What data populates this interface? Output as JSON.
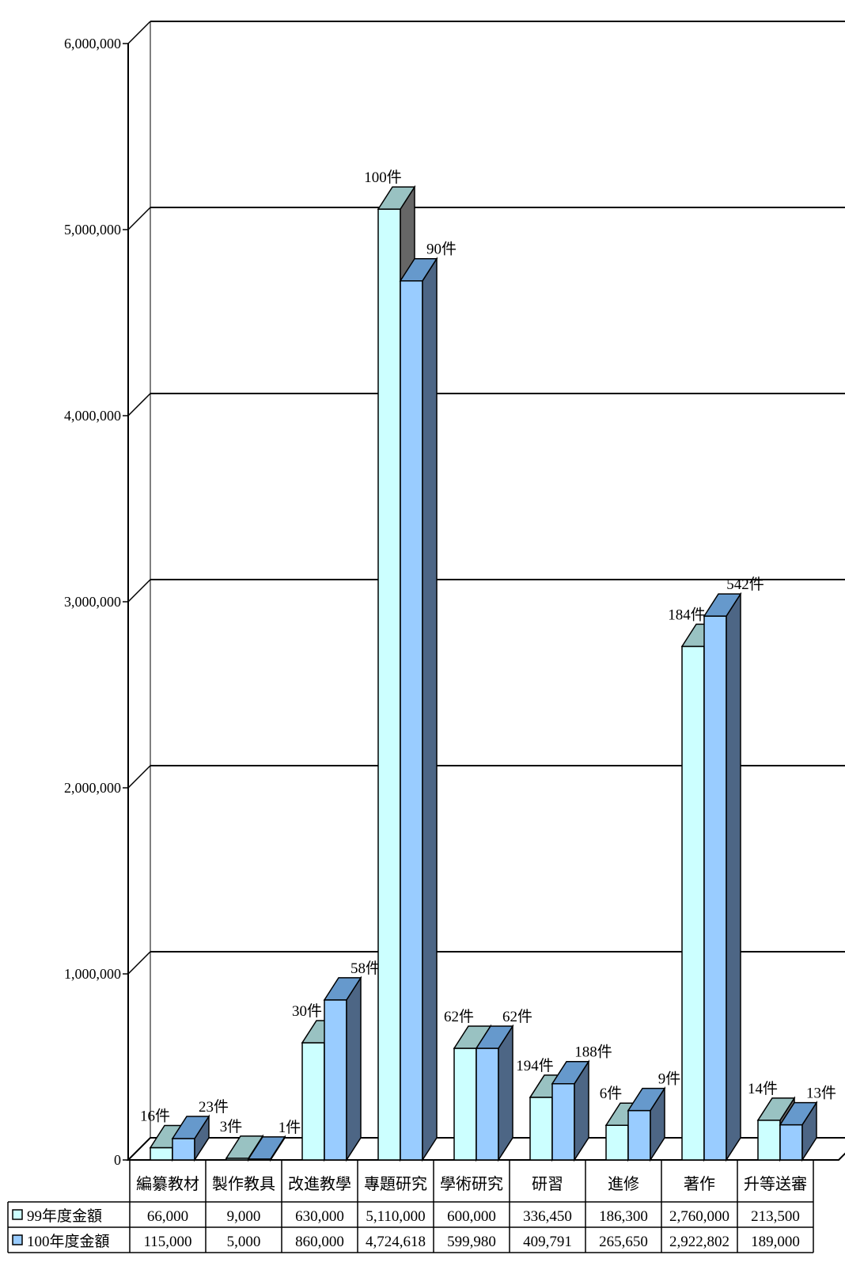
{
  "chart_data": {
    "type": "bar",
    "title": "",
    "xlabel": "",
    "ylabel": "",
    "ylim": [
      0,
      6000000
    ],
    "yticks": [
      0,
      1000000,
      2000000,
      3000000,
      4000000,
      5000000,
      6000000
    ],
    "ytick_labels": [
      "0",
      "1,000,000",
      "2,000,000",
      "3,000,000",
      "4,000,000",
      "5,000,000",
      "6,000,000"
    ],
    "grid": true,
    "style": "3d-clustered-column with data table",
    "categories": [
      "編纂教材",
      "製作教具",
      "改進教學",
      "專題研究",
      "學術研究",
      "研習",
      "進修",
      "著作",
      "升等送審"
    ],
    "series": [
      {
        "name": "99年度金額",
        "color": "#ccffff",
        "values": [
          66000,
          9000,
          630000,
          5110000,
          600000,
          336450,
          186300,
          2760000,
          213500
        ],
        "value_labels": [
          "66,000",
          "9,000",
          "630,000",
          "5,110,000",
          "600,000",
          "336,450",
          "186,300",
          "2,760,000",
          "213,500"
        ],
        "count_labels": [
          "16件",
          "3件",
          "30件",
          "100件",
          "62件",
          "194件",
          "6件",
          "184件",
          "14件"
        ]
      },
      {
        "name": "100年度金額",
        "color": "#99ccff",
        "values": [
          115000,
          5000,
          860000,
          4724618,
          599980,
          409791,
          265650,
          2922802,
          189000
        ],
        "value_labels": [
          "115,000",
          "5,000",
          "860,000",
          "4,724,618",
          "599,980",
          "409,791",
          "265,650",
          "2,922,802",
          "189,000"
        ],
        "count_labels": [
          "23件",
          "1件",
          "58件",
          "90件",
          "62件",
          "188件",
          "9件",
          "542件",
          "13件"
        ]
      }
    ]
  }
}
